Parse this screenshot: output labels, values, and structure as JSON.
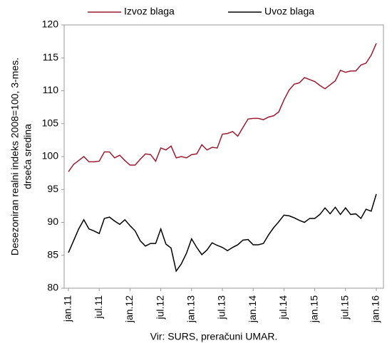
{
  "chart_data": {
    "type": "line",
    "ylabel": [
      "Desezoniran realni indeks 2008=100, 3-mes.",
      "drseča sredina"
    ],
    "source": "Vir: SURS, preračuni UMAR.",
    "categories": [
      "jan.11",
      null,
      null,
      null,
      null,
      null,
      "jul.11",
      null,
      null,
      null,
      null,
      null,
      "jan.12",
      null,
      null,
      null,
      null,
      null,
      "jul.12",
      null,
      null,
      null,
      null,
      null,
      "jan.13",
      null,
      null,
      null,
      null,
      null,
      "jul.13",
      null,
      null,
      null,
      null,
      null,
      "jan.14",
      null,
      null,
      null,
      null,
      null,
      "jul.14",
      null,
      null,
      null,
      null,
      null,
      "jan.15",
      null,
      null,
      null,
      null,
      null,
      "jul.15",
      null,
      null,
      null,
      null,
      null,
      "jan.16"
    ],
    "series": [
      {
        "name": "Izvoz blaga",
        "color": "#9b1b30",
        "values": [
          97.7,
          98.8,
          99.4,
          100.0,
          99.2,
          99.2,
          99.3,
          100.7,
          100.7,
          99.8,
          100.2,
          99.4,
          98.7,
          98.7,
          99.6,
          100.4,
          100.3,
          99.3,
          101.3,
          101.0,
          101.6,
          99.8,
          100.0,
          99.8,
          100.3,
          100.4,
          101.8,
          101.0,
          101.4,
          101.3,
          103.4,
          103.5,
          103.8,
          103.1,
          104.4,
          105.7,
          105.8,
          105.8,
          105.6,
          106.0,
          106.2,
          106.8,
          108.6,
          110.1,
          111.0,
          111.2,
          112.0,
          111.7,
          111.4,
          110.8,
          110.3,
          110.9,
          111.5,
          113.1,
          112.8,
          113.0,
          113.0,
          113.9,
          114.2,
          115.4,
          117.2
        ]
      },
      {
        "name": "Uvoz blaga",
        "color": "#000000",
        "values": [
          85.4,
          87.2,
          89.0,
          90.4,
          89.0,
          88.7,
          88.3,
          90.6,
          90.8,
          90.2,
          89.7,
          90.4,
          89.5,
          88.7,
          87.2,
          86.4,
          86.8,
          86.8,
          89.0,
          86.7,
          86.1,
          82.6,
          83.7,
          85.3,
          87.5,
          86.2,
          85.1,
          85.8,
          86.9,
          86.5,
          86.2,
          85.7,
          86.2,
          86.6,
          87.3,
          87.4,
          86.6,
          86.6,
          86.8,
          88.1,
          89.2,
          90.1,
          91.1,
          91.0,
          90.7,
          90.3,
          90.0,
          90.6,
          90.6,
          91.2,
          92.2,
          91.3,
          92.3,
          91.2,
          92.2,
          91.2,
          91.3,
          90.6,
          92.0,
          91.7,
          94.3
        ]
      }
    ],
    "ylim": [
      80,
      120
    ],
    "yticks": [
      80,
      85,
      90,
      95,
      100,
      105,
      110,
      115,
      120
    ]
  }
}
